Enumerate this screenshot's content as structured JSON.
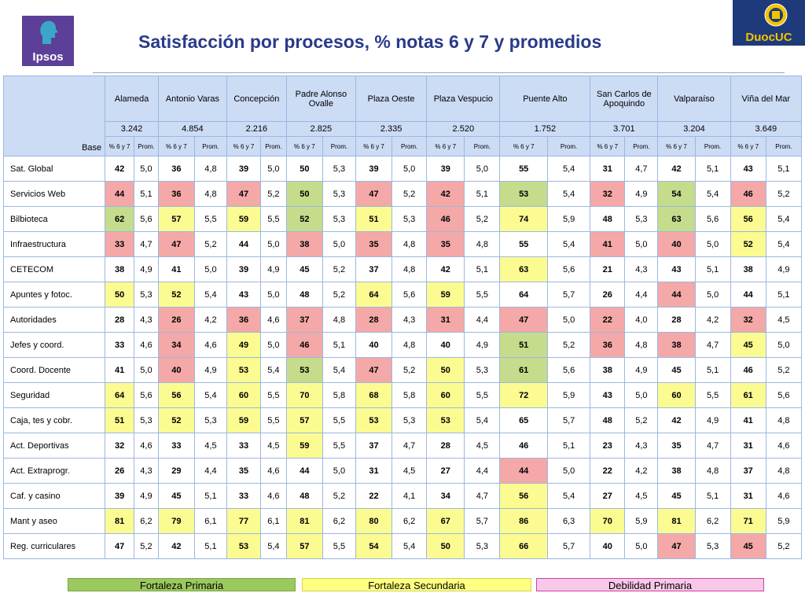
{
  "title": "Satisfacción por procesos, % notas 6 y 7 y promedios",
  "logos": {
    "ipsos": "Ipsos",
    "duoc": "DuocUC"
  },
  "table": {
    "base_label": "Base",
    "sub_pct": "% 6 y 7",
    "sub_prom": "Prom.",
    "columns": [
      {
        "name": "Alameda",
        "base": "3.242"
      },
      {
        "name": "Antonio Varas",
        "base": "4.854"
      },
      {
        "name": "Concepción",
        "base": "2.216"
      },
      {
        "name": "Padre Alonso Ovalle",
        "base": "2.825"
      },
      {
        "name": "Plaza Oeste",
        "base": "2.335"
      },
      {
        "name": "Plaza Vespucio",
        "base": "2.520"
      },
      {
        "name": "Puente Alto",
        "base": "1.752"
      },
      {
        "name": "San Carlos de Apoquindo",
        "base": "3.701"
      },
      {
        "name": "Valparaíso",
        "base": "3.204"
      },
      {
        "name": "Viña del Mar",
        "base": "3.649"
      }
    ],
    "rows": [
      {
        "label": "Sat. Global",
        "cells": [
          [
            "42",
            "5,0",
            ""
          ],
          [
            "36",
            "4,8",
            ""
          ],
          [
            "39",
            "5,0",
            ""
          ],
          [
            "50",
            "5,3",
            ""
          ],
          [
            "39",
            "5,0",
            ""
          ],
          [
            "39",
            "5,0",
            ""
          ],
          [
            "55",
            "5,4",
            ""
          ],
          [
            "31",
            "4,7",
            ""
          ],
          [
            "42",
            "5,1",
            ""
          ],
          [
            "43",
            "5,1",
            ""
          ]
        ]
      },
      {
        "label": "Servicios Web",
        "cells": [
          [
            "44",
            "5,1",
            "r"
          ],
          [
            "36",
            "4,8",
            "r"
          ],
          [
            "47",
            "5,2",
            "r"
          ],
          [
            "50",
            "5,3",
            "g"
          ],
          [
            "47",
            "5,2",
            "r"
          ],
          [
            "42",
            "5,1",
            "r"
          ],
          [
            "53",
            "5,4",
            "g"
          ],
          [
            "32",
            "4,9",
            "r"
          ],
          [
            "54",
            "5,4",
            "g"
          ],
          [
            "46",
            "5,2",
            "r"
          ]
        ]
      },
      {
        "label": "Bilbioteca",
        "cells": [
          [
            "62",
            "5,6",
            "g"
          ],
          [
            "57",
            "5,5",
            "y"
          ],
          [
            "59",
            "5,5",
            "y"
          ],
          [
            "52",
            "5,3",
            "g"
          ],
          [
            "51",
            "5,3",
            "y"
          ],
          [
            "46",
            "5,2",
            "r"
          ],
          [
            "74",
            "5,9",
            "y"
          ],
          [
            "48",
            "5,3",
            ""
          ],
          [
            "63",
            "5,6",
            "g"
          ],
          [
            "56",
            "5,4",
            "y"
          ]
        ]
      },
      {
        "label": "Infraestructura",
        "cells": [
          [
            "33",
            "4,7",
            "r"
          ],
          [
            "47",
            "5,2",
            "r"
          ],
          [
            "44",
            "5,0",
            ""
          ],
          [
            "38",
            "5,0",
            "r"
          ],
          [
            "35",
            "4,8",
            "r"
          ],
          [
            "35",
            "4,8",
            "r"
          ],
          [
            "55",
            "5,4",
            ""
          ],
          [
            "41",
            "5,0",
            "r"
          ],
          [
            "40",
            "5,0",
            "r"
          ],
          [
            "52",
            "5,4",
            "y"
          ]
        ]
      },
      {
        "label": "CETECOM",
        "cells": [
          [
            "38",
            "4,9",
            ""
          ],
          [
            "41",
            "5,0",
            ""
          ],
          [
            "39",
            "4,9",
            ""
          ],
          [
            "45",
            "5,2",
            ""
          ],
          [
            "37",
            "4,8",
            ""
          ],
          [
            "42",
            "5,1",
            ""
          ],
          [
            "63",
            "5,6",
            "y"
          ],
          [
            "21",
            "4,3",
            ""
          ],
          [
            "43",
            "5,1",
            ""
          ],
          [
            "38",
            "4,9",
            ""
          ]
        ]
      },
      {
        "label": "Apuntes y fotoc.",
        "cells": [
          [
            "50",
            "5,3",
            "y"
          ],
          [
            "52",
            "5,4",
            "y"
          ],
          [
            "43",
            "5,0",
            ""
          ],
          [
            "48",
            "5,2",
            ""
          ],
          [
            "64",
            "5,6",
            "y"
          ],
          [
            "59",
            "5,5",
            "y"
          ],
          [
            "64",
            "5,7",
            ""
          ],
          [
            "26",
            "4,4",
            ""
          ],
          [
            "44",
            "5,0",
            "r"
          ],
          [
            "44",
            "5,1",
            ""
          ]
        ]
      },
      {
        "label": "Autoridades",
        "cells": [
          [
            "28",
            "4,3",
            ""
          ],
          [
            "26",
            "4,2",
            "r"
          ],
          [
            "36",
            "4,6",
            "r"
          ],
          [
            "37",
            "4,8",
            "r"
          ],
          [
            "28",
            "4,3",
            "r"
          ],
          [
            "31",
            "4,4",
            "r"
          ],
          [
            "47",
            "5,0",
            "r"
          ],
          [
            "22",
            "4,0",
            "r"
          ],
          [
            "28",
            "4,2",
            ""
          ],
          [
            "32",
            "4,5",
            "r"
          ]
        ]
      },
      {
        "label": "Jefes y coord.",
        "cells": [
          [
            "33",
            "4,6",
            ""
          ],
          [
            "34",
            "4,6",
            "r"
          ],
          [
            "49",
            "5,0",
            "y"
          ],
          [
            "46",
            "5,1",
            "r"
          ],
          [
            "40",
            "4,8",
            ""
          ],
          [
            "40",
            "4,9",
            ""
          ],
          [
            "51",
            "5,2",
            "g"
          ],
          [
            "36",
            "4,8",
            "r"
          ],
          [
            "38",
            "4,7",
            "r"
          ],
          [
            "45",
            "5,0",
            "y"
          ]
        ]
      },
      {
        "label": "Coord. Docente",
        "cells": [
          [
            "41",
            "5,0",
            ""
          ],
          [
            "40",
            "4,9",
            "r"
          ],
          [
            "53",
            "5,4",
            "y"
          ],
          [
            "53",
            "5,4",
            "g"
          ],
          [
            "47",
            "5,2",
            "r"
          ],
          [
            "50",
            "5,3",
            "y"
          ],
          [
            "61",
            "5,6",
            "g"
          ],
          [
            "38",
            "4,9",
            ""
          ],
          [
            "45",
            "5,1",
            ""
          ],
          [
            "46",
            "5,2",
            ""
          ]
        ]
      },
      {
        "label": "Seguridad",
        "cells": [
          [
            "64",
            "5,6",
            "y"
          ],
          [
            "56",
            "5,4",
            "y"
          ],
          [
            "60",
            "5,5",
            "y"
          ],
          [
            "70",
            "5,8",
            "y"
          ],
          [
            "68",
            "5,8",
            "y"
          ],
          [
            "60",
            "5,5",
            "y"
          ],
          [
            "72",
            "5,9",
            "y"
          ],
          [
            "43",
            "5,0",
            ""
          ],
          [
            "60",
            "5,5",
            "y"
          ],
          [
            "61",
            "5,6",
            "y"
          ]
        ]
      },
      {
        "label": "Caja, tes y cobr.",
        "cells": [
          [
            "51",
            "5,3",
            "y"
          ],
          [
            "52",
            "5,3",
            "y"
          ],
          [
            "59",
            "5,5",
            "y"
          ],
          [
            "57",
            "5,5",
            "y"
          ],
          [
            "53",
            "5,3",
            "y"
          ],
          [
            "53",
            "5,4",
            "y"
          ],
          [
            "65",
            "5,7",
            ""
          ],
          [
            "48",
            "5,2",
            ""
          ],
          [
            "42",
            "4,9",
            ""
          ],
          [
            "41",
            "4,8",
            ""
          ]
        ]
      },
      {
        "label": "Act. Deportivas",
        "cells": [
          [
            "32",
            "4,6",
            ""
          ],
          [
            "33",
            "4,5",
            ""
          ],
          [
            "33",
            "4,5",
            ""
          ],
          [
            "59",
            "5,5",
            "y"
          ],
          [
            "37",
            "4,7",
            ""
          ],
          [
            "28",
            "4,5",
            ""
          ],
          [
            "46",
            "5,1",
            ""
          ],
          [
            "23",
            "4,3",
            ""
          ],
          [
            "35",
            "4,7",
            ""
          ],
          [
            "31",
            "4,6",
            ""
          ]
        ]
      },
      {
        "label": "Act. Extraprogr.",
        "cells": [
          [
            "26",
            "4,3",
            ""
          ],
          [
            "29",
            "4,4",
            ""
          ],
          [
            "35",
            "4,6",
            ""
          ],
          [
            "44",
            "5,0",
            ""
          ],
          [
            "31",
            "4,5",
            ""
          ],
          [
            "27",
            "4,4",
            ""
          ],
          [
            "44",
            "5,0",
            "r"
          ],
          [
            "22",
            "4,2",
            ""
          ],
          [
            "38",
            "4,8",
            ""
          ],
          [
            "37",
            "4,8",
            ""
          ]
        ]
      },
      {
        "label": "Caf. y casino",
        "cells": [
          [
            "39",
            "4,9",
            ""
          ],
          [
            "45",
            "5,1",
            ""
          ],
          [
            "33",
            "4,6",
            ""
          ],
          [
            "48",
            "5,2",
            ""
          ],
          [
            "22",
            "4,1",
            ""
          ],
          [
            "34",
            "4,7",
            ""
          ],
          [
            "56",
            "5,4",
            "y"
          ],
          [
            "27",
            "4,5",
            ""
          ],
          [
            "45",
            "5,1",
            ""
          ],
          [
            "31",
            "4,6",
            ""
          ]
        ]
      },
      {
        "label": "Mant y aseo",
        "cells": [
          [
            "81",
            "6,2",
            "y"
          ],
          [
            "79",
            "6,1",
            "y"
          ],
          [
            "77",
            "6,1",
            "y"
          ],
          [
            "81",
            "6,2",
            "y"
          ],
          [
            "80",
            "6,2",
            "y"
          ],
          [
            "67",
            "5,7",
            "y"
          ],
          [
            "86",
            "6,3",
            "y"
          ],
          [
            "70",
            "5,9",
            "y"
          ],
          [
            "81",
            "6,2",
            "y"
          ],
          [
            "71",
            "5,9",
            "y"
          ]
        ]
      },
      {
        "label": "Reg. curriculares",
        "cells": [
          [
            "47",
            "5,2",
            ""
          ],
          [
            "42",
            "5,1",
            ""
          ],
          [
            "53",
            "5,4",
            "y"
          ],
          [
            "57",
            "5,5",
            "y"
          ],
          [
            "54",
            "5,4",
            "y"
          ],
          [
            "50",
            "5,3",
            "y"
          ],
          [
            "66",
            "5,7",
            "y"
          ],
          [
            "40",
            "5,0",
            ""
          ],
          [
            "47",
            "5,3",
            "r"
          ],
          [
            "45",
            "5,2",
            "r"
          ]
        ]
      }
    ]
  },
  "colors": {
    "g": "#c4dc8c",
    "y": "#fbfb92",
    "r": "#f4a8a8",
    "header": "#ccdcf5",
    "border": "#9bb8e0",
    "title": "#2a3a8a"
  },
  "legend": {
    "primary_strength": "Fortaleza Primaria",
    "secondary_strength": "Fortaleza Secundaria",
    "primary_weakness": "Debilidad Primaria"
  }
}
